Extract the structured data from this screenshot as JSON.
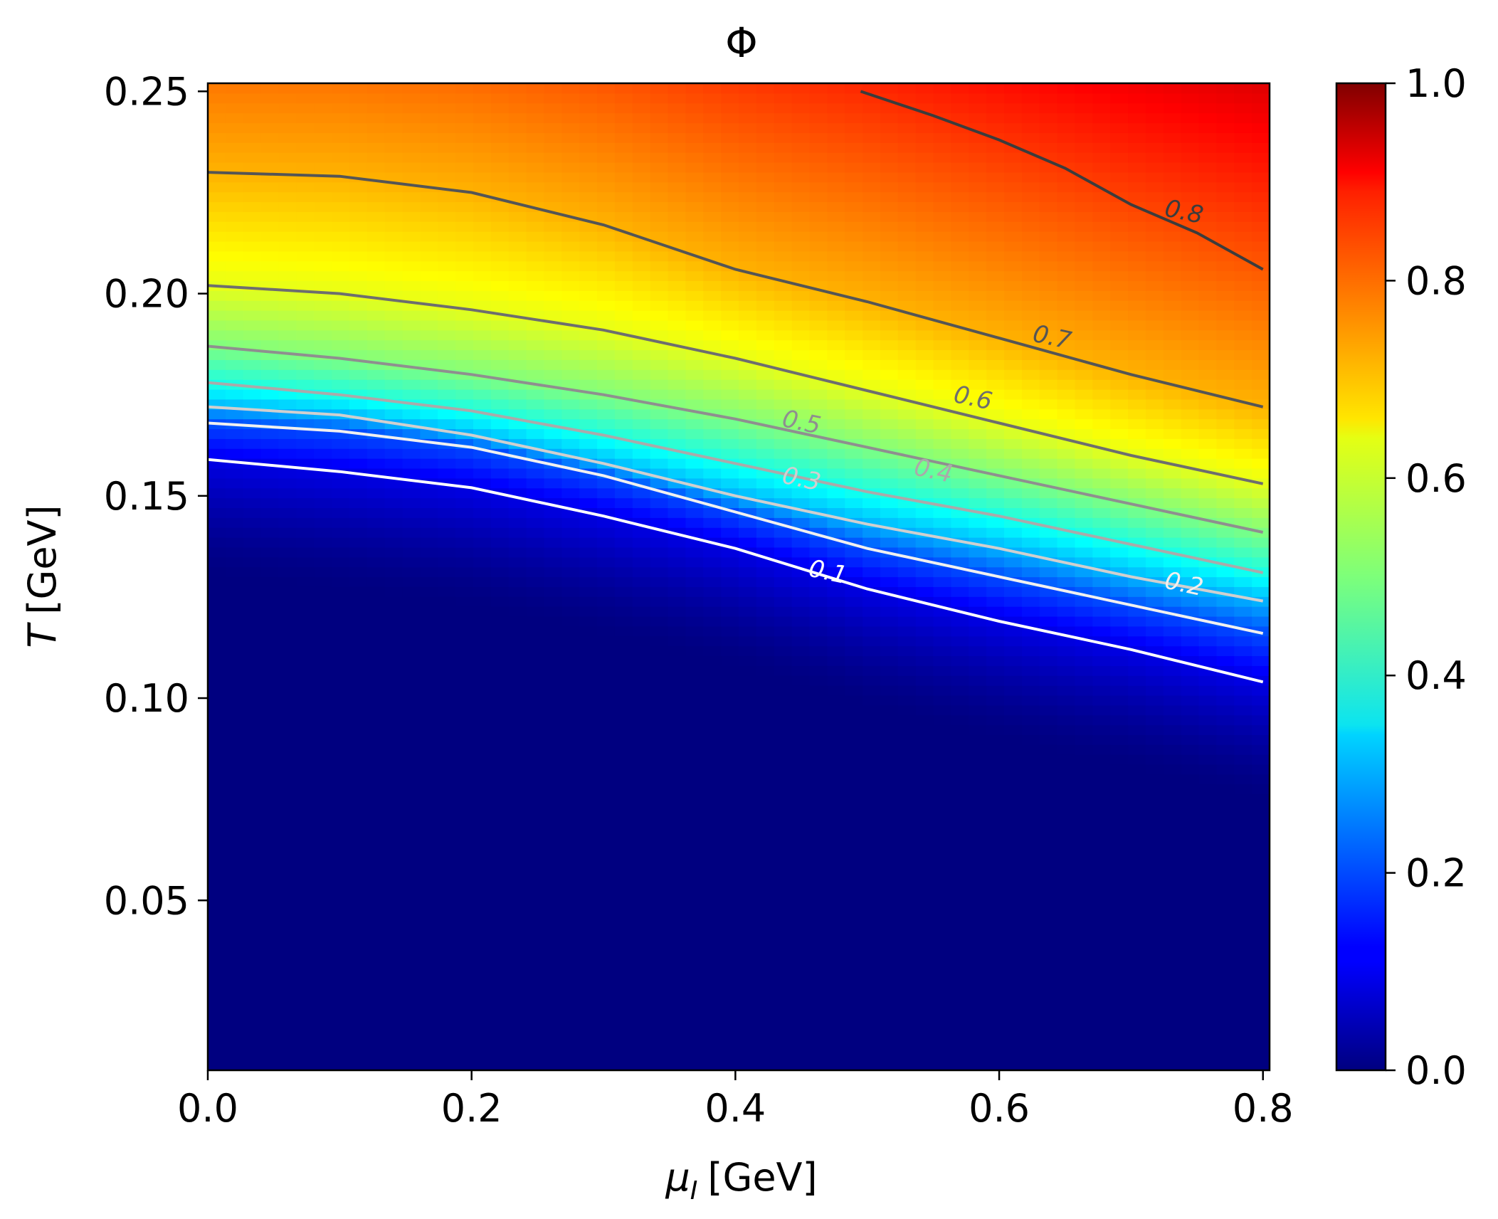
{
  "chart_data": {
    "type": "heatmap",
    "title": "Φ",
    "xlabel_symbol": "μ",
    "xlabel_subscript": "I",
    "xlabel_unit": "[GeV]",
    "ylabel_symbol": "T",
    "ylabel_unit": "[GeV]",
    "xlim": [
      0.0,
      0.805
    ],
    "ylim": [
      0.008,
      0.252
    ],
    "x_ticks": [
      0.0,
      0.2,
      0.4,
      0.6,
      0.8
    ],
    "x_tick_labels": [
      "0.0",
      "0.2",
      "0.4",
      "0.6",
      "0.8"
    ],
    "y_ticks": [
      0.05,
      0.1,
      0.15,
      0.2,
      0.25
    ],
    "y_tick_labels": [
      "0.05",
      "0.10",
      "0.15",
      "0.20",
      "0.25"
    ],
    "colormap": "jet",
    "colorbar": {
      "range": [
        0.0,
        1.0
      ],
      "ticks": [
        0.0,
        0.2,
        0.4,
        0.6,
        0.8,
        1.0
      ],
      "tick_labels": [
        "0.0",
        "0.2",
        "0.4",
        "0.6",
        "0.8",
        "1.0"
      ]
    },
    "contours": [
      {
        "level": 0.1,
        "label": "0.1",
        "color": "#ffffff",
        "label_at": [
          0.47,
          0.131
        ],
        "points": [
          [
            0.0,
            0.159
          ],
          [
            0.1,
            0.156
          ],
          [
            0.2,
            0.152
          ],
          [
            0.3,
            0.145
          ],
          [
            0.4,
            0.137
          ],
          [
            0.5,
            0.127
          ],
          [
            0.6,
            0.119
          ],
          [
            0.7,
            0.112
          ],
          [
            0.8,
            0.104
          ]
        ]
      },
      {
        "level": 0.2,
        "label": "0.2",
        "color": "#f0f0f0",
        "label_at": [
          0.74,
          0.128
        ],
        "points": [
          [
            0.0,
            0.168
          ],
          [
            0.1,
            0.166
          ],
          [
            0.2,
            0.162
          ],
          [
            0.3,
            0.155
          ],
          [
            0.4,
            0.146
          ],
          [
            0.5,
            0.137
          ],
          [
            0.6,
            0.13
          ],
          [
            0.7,
            0.123
          ],
          [
            0.8,
            0.116
          ]
        ]
      },
      {
        "level": 0.3,
        "label": "0.3",
        "color": "#cfcfcf",
        "label_at": [
          0.45,
          0.154
        ],
        "points": [
          [
            0.0,
            0.172
          ],
          [
            0.1,
            0.17
          ],
          [
            0.2,
            0.165
          ],
          [
            0.3,
            0.158
          ],
          [
            0.4,
            0.15
          ],
          [
            0.5,
            0.143
          ],
          [
            0.6,
            0.137
          ],
          [
            0.7,
            0.13
          ],
          [
            0.8,
            0.124
          ]
        ]
      },
      {
        "level": 0.4,
        "label": "0.4",
        "color": "#aaaaaa",
        "label_at": [
          0.55,
          0.156
        ],
        "points": [
          [
            0.0,
            0.178
          ],
          [
            0.1,
            0.175
          ],
          [
            0.2,
            0.171
          ],
          [
            0.3,
            0.165
          ],
          [
            0.4,
            0.158
          ],
          [
            0.5,
            0.151
          ],
          [
            0.6,
            0.145
          ],
          [
            0.7,
            0.138
          ],
          [
            0.8,
            0.131
          ]
        ]
      },
      {
        "level": 0.5,
        "label": "0.5",
        "color": "#8f8f8f",
        "label_at": [
          0.45,
          0.168
        ],
        "points": [
          [
            0.0,
            0.187
          ],
          [
            0.1,
            0.184
          ],
          [
            0.2,
            0.18
          ],
          [
            0.3,
            0.175
          ],
          [
            0.4,
            0.169
          ],
          [
            0.5,
            0.162
          ],
          [
            0.6,
            0.155
          ],
          [
            0.7,
            0.148
          ],
          [
            0.8,
            0.141
          ]
        ]
      },
      {
        "level": 0.6,
        "label": "0.6",
        "color": "#6e6e6e",
        "label_at": [
          0.58,
          0.174
        ],
        "points": [
          [
            0.0,
            0.202
          ],
          [
            0.1,
            0.2
          ],
          [
            0.2,
            0.196
          ],
          [
            0.3,
            0.191
          ],
          [
            0.4,
            0.184
          ],
          [
            0.5,
            0.176
          ],
          [
            0.6,
            0.168
          ],
          [
            0.7,
            0.16
          ],
          [
            0.8,
            0.153
          ]
        ]
      },
      {
        "level": 0.7,
        "label": "0.7",
        "color": "#555555",
        "label_at": [
          0.64,
          0.189
        ],
        "points": [
          [
            0.0,
            0.23
          ],
          [
            0.1,
            0.229
          ],
          [
            0.2,
            0.225
          ],
          [
            0.3,
            0.217
          ],
          [
            0.4,
            0.206
          ],
          [
            0.5,
            0.198
          ],
          [
            0.6,
            0.189
          ],
          [
            0.7,
            0.18
          ],
          [
            0.8,
            0.172
          ]
        ]
      },
      {
        "level": 0.8,
        "label": "0.8",
        "color": "#3c3c3c",
        "label_at": [
          0.74,
          0.22
        ],
        "points": [
          [
            0.495,
            0.25
          ],
          [
            0.55,
            0.244
          ],
          [
            0.6,
            0.238
          ],
          [
            0.65,
            0.231
          ],
          [
            0.7,
            0.222
          ],
          [
            0.75,
            0.215
          ],
          [
            0.8,
            0.206
          ]
        ]
      }
    ]
  }
}
